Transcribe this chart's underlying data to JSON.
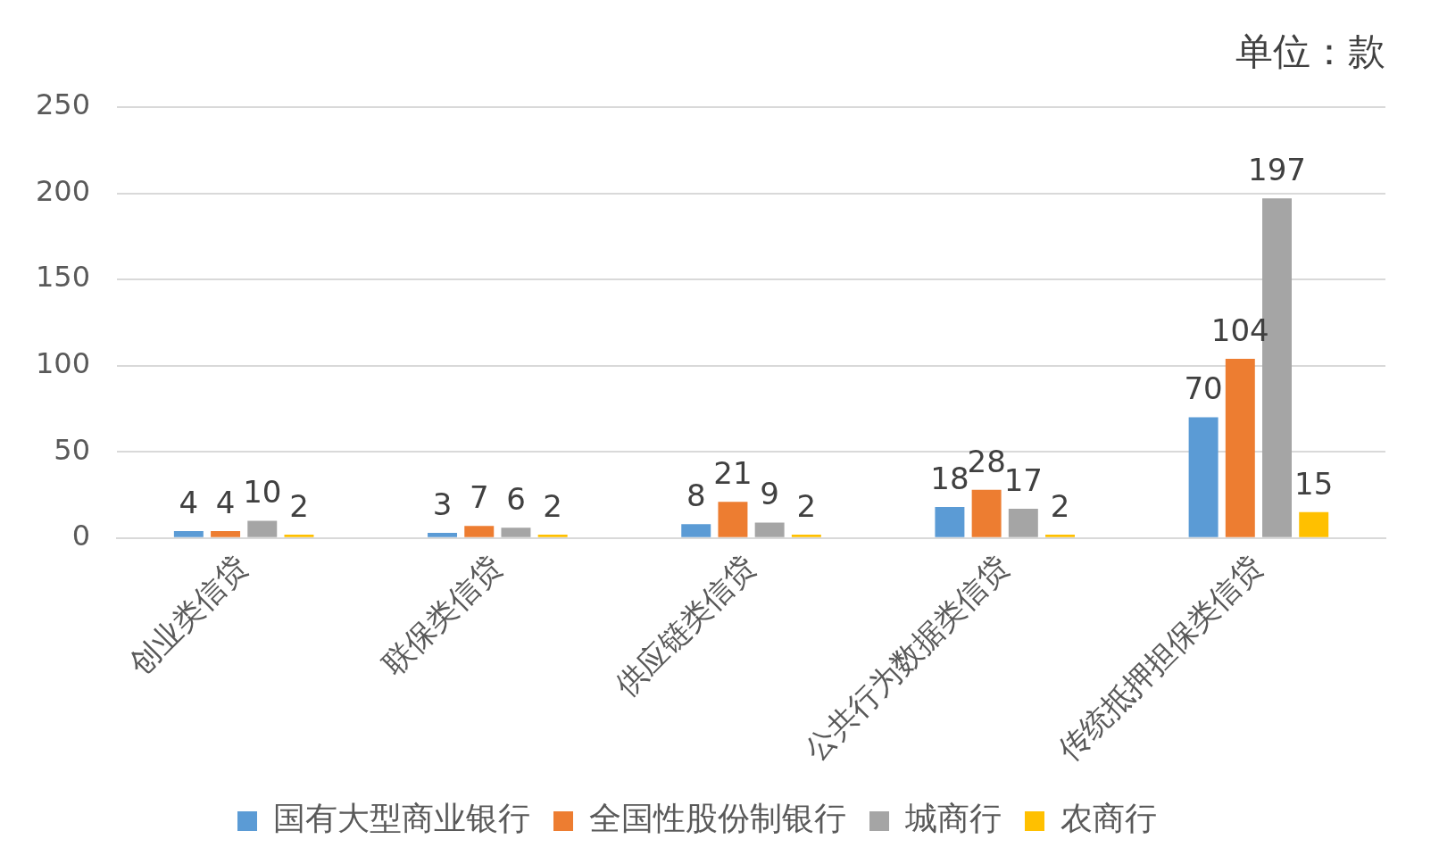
{
  "chart_data": {
    "type": "bar",
    "categories": [
      "创业类信贷",
      "联保类信贷",
      "供应链类信贷",
      "公共行为数据类信贷",
      "传统抵押担保类信贷"
    ],
    "series": [
      {
        "name": "国有大型商业银行",
        "color": "#5b9bd5",
        "values": [
          4,
          3,
          8,
          18,
          70
        ]
      },
      {
        "name": "全国性股份制银行",
        "color": "#ed7d31",
        "values": [
          4,
          7,
          21,
          28,
          104
        ]
      },
      {
        "name": "城商行",
        "color": "#a5a5a5",
        "values": [
          10,
          6,
          9,
          17,
          197
        ]
      },
      {
        "name": "农商行",
        "color": "#ffc000",
        "values": [
          2,
          2,
          2,
          2,
          15
        ]
      }
    ],
    "ylim": [
      0,
      250
    ],
    "yticks": [
      0,
      50,
      100,
      150,
      200,
      250
    ],
    "grid": "y",
    "legend": "bottom",
    "data_labels": true,
    "annotations": [
      "单位：款"
    ]
  }
}
